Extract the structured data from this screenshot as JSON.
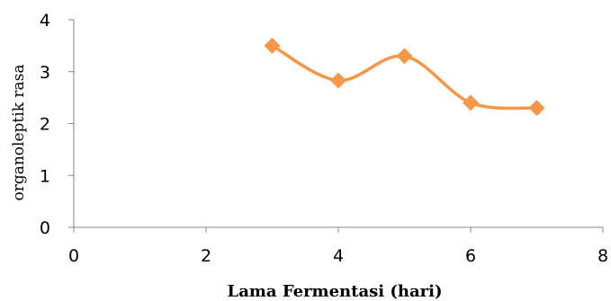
{
  "chart_data": {
    "type": "line",
    "title": "",
    "xlabel": "Lama Fermentasi (hari)",
    "ylabel": "organoleptik rasa",
    "xlim": [
      0,
      8
    ],
    "ylim": [
      0,
      4
    ],
    "x_ticks": [
      0,
      2,
      4,
      6,
      8
    ],
    "y_ticks": [
      0,
      1,
      2,
      3,
      4
    ],
    "grid": false,
    "legend": "none",
    "smooth": true,
    "marker": "diamond",
    "series": [
      {
        "color": "#F79646",
        "x": [
          3,
          4,
          5,
          6,
          7
        ],
        "values": [
          3.5,
          2.83,
          3.3,
          2.4,
          2.3
        ]
      }
    ]
  }
}
